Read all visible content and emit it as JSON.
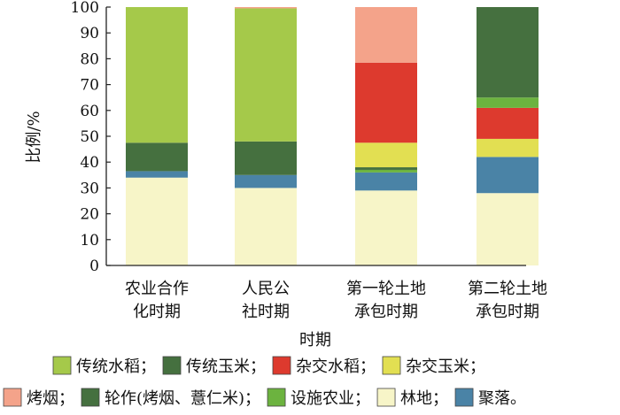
{
  "chart_data": {
    "type": "bar",
    "stacked": true,
    "categories": [
      [
        "农业合作",
        "化时期"
      ],
      [
        "人民公",
        "社时期"
      ],
      [
        "第一轮土地",
        "承包时期"
      ],
      [
        "第二轮土地",
        "承包时期"
      ]
    ],
    "xlabel": "时期",
    "ylabel": "比例/%",
    "ylim": [
      0,
      100
    ],
    "yticks": [
      0,
      10,
      20,
      30,
      40,
      50,
      60,
      70,
      80,
      90,
      100
    ],
    "grid": false,
    "legend_position": "bottom",
    "series": [
      {
        "name": "林地",
        "color": "#f7f5c8",
        "values": [
          34,
          30,
          29,
          28
        ]
      },
      {
        "name": "聚落",
        "color": "#4a83a6",
        "values": [
          2.5,
          5,
          7,
          14
        ]
      },
      {
        "name": "设施农业",
        "color": "#6cb33f",
        "values": [
          0,
          0,
          1,
          0
        ]
      },
      {
        "name": "轮作(烤烟、薏仁米)",
        "color": "#45703f",
        "values": [
          11,
          13,
          1,
          0
        ]
      },
      {
        "name": "杂交玉米",
        "color": "#e2df52",
        "values": [
          0,
          0,
          9.5,
          7
        ]
      },
      {
        "name": "杂交水稻",
        "color": "#dd3a2e",
        "values": [
          0,
          0,
          31,
          12
        ]
      },
      {
        "name": "设施农业",
        "color": "#6cb33f",
        "values": [
          0,
          0,
          0,
          4
        ]
      },
      {
        "name": "轮作(烤烟、薏仁米)",
        "color": "#45703f",
        "values": [
          0,
          0,
          0,
          35
        ]
      },
      {
        "name": "传统水稻",
        "color": "#a5c94a",
        "values": [
          52.5,
          51.5,
          0,
          0
        ]
      },
      {
        "name": "烤烟",
        "color": "#f4a38a",
        "values": [
          0,
          0.5,
          21.5,
          0
        ]
      }
    ],
    "legend": [
      [
        {
          "label": "传统水稻；",
          "color": "#a5c94a"
        },
        {
          "label": "传统玉米；",
          "color": "#45703f"
        },
        {
          "label": "杂交水稻；",
          "color": "#dd3a2e"
        },
        {
          "label": "杂交玉米；",
          "color": "#e2df52"
        }
      ],
      [
        {
          "label": "烤烟；",
          "color": "#f4a38a"
        },
        {
          "label": "轮作(烤烟、薏仁米)；",
          "color": "#45703f"
        },
        {
          "label": "设施农业；",
          "color": "#6cb33f"
        },
        {
          "label": "林地；",
          "color": "#f7f5c8"
        },
        {
          "label": "聚落。",
          "color": "#4a83a6"
        }
      ]
    ]
  }
}
